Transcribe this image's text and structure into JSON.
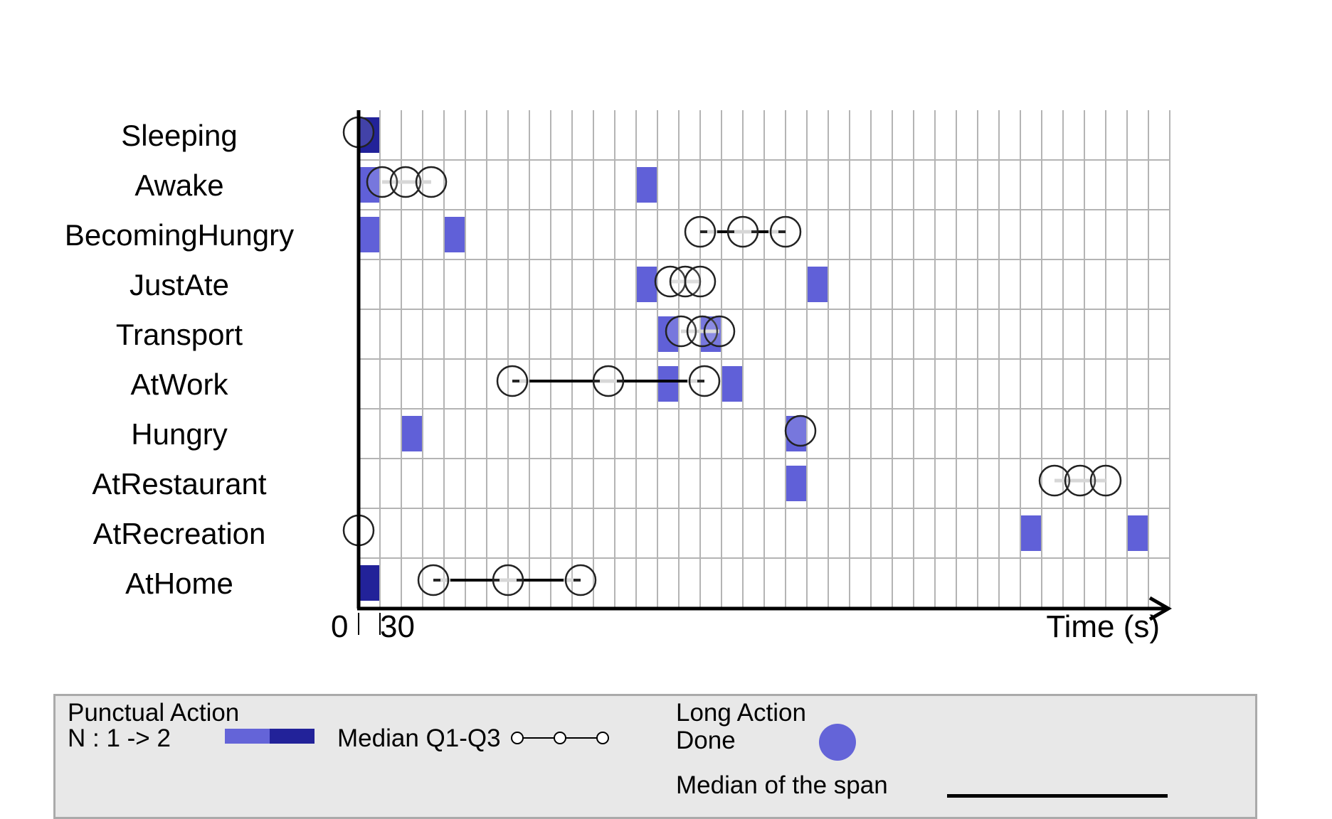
{
  "chart_data": {
    "type": "timeline",
    "x_unit_label": "Time (s)",
    "x_ticks": [
      "0",
      "30"
    ],
    "grid": true,
    "rows": [
      "Sleeping",
      "Awake",
      "BecomingHungry",
      "JustAte",
      "Transport",
      "AtWork",
      "Hungry",
      "AtRestaurant",
      "AtRecreation",
      "AtHome"
    ],
    "punctual_actions": [
      {
        "row": "Sleeping",
        "col": 0,
        "n": 2
      },
      {
        "row": "Awake",
        "col": 0,
        "n": 1
      },
      {
        "row": "Awake",
        "col": 13,
        "n": 1
      },
      {
        "row": "BecomingHungry",
        "col": 0,
        "n": 1
      },
      {
        "row": "BecomingHungry",
        "col": 4,
        "n": 1
      },
      {
        "row": "JustAte",
        "col": 13,
        "n": 1
      },
      {
        "row": "JustAte",
        "col": 21,
        "n": 1
      },
      {
        "row": "Transport",
        "col": 14,
        "n": 1
      },
      {
        "row": "Transport",
        "col": 16,
        "n": 1
      },
      {
        "row": "AtWork",
        "col": 14,
        "n": 1
      },
      {
        "row": "AtWork",
        "col": 17,
        "n": 1
      },
      {
        "row": "Hungry",
        "col": 2,
        "n": 1
      },
      {
        "row": "Hungry",
        "col": 20,
        "n": 1
      },
      {
        "row": "AtRestaurant",
        "col": 20,
        "n": 1
      },
      {
        "row": "AtRecreation",
        "col": 31,
        "n": 1
      },
      {
        "row": "AtRecreation",
        "col": 36,
        "n": 1
      },
      {
        "row": "AtHome",
        "col": 0,
        "n": 2
      }
    ],
    "long_actions": [
      {
        "row": "Sleeping",
        "q1": 0,
        "median": 0,
        "q3": 0,
        "median_span": false
      },
      {
        "row": "Awake",
        "q1": 1.1,
        "median": 2.2,
        "q3": 3.4,
        "median_span": false
      },
      {
        "row": "BecomingHungry",
        "q1": 16,
        "median": 18,
        "q3": 20,
        "median_span": true
      },
      {
        "row": "JustAte",
        "q1": 14.6,
        "median": 15.3,
        "q3": 16,
        "median_span": false
      },
      {
        "row": "Transport",
        "q1": 15.1,
        "median": 16.1,
        "q3": 16.9,
        "median_span": false
      },
      {
        "row": "AtWork",
        "q1": 7.2,
        "median": 11.7,
        "q3": 16.2,
        "median_span": true
      },
      {
        "row": "Hungry",
        "q1": 20.7,
        "median": 20.7,
        "q3": 20.7,
        "median_span": false
      },
      {
        "row": "AtRestaurant",
        "q1": 32.6,
        "median": 33.8,
        "q3": 35.0,
        "median_span": false
      },
      {
        "row": "AtRecreation",
        "q1": 0,
        "median": 0,
        "q3": 0,
        "median_span": false
      },
      {
        "row": "AtHome",
        "q1": 3.5,
        "median": 7,
        "q3": 10.4,
        "median_span": true
      }
    ],
    "colors": {
      "punctual_n1": "#6060d8",
      "punctual_n2": "#222299",
      "grid": "#b4b4b4",
      "median_line": "#000000",
      "span_line": "#d0d0d0"
    }
  },
  "legend": {
    "punctual_title": "Punctual Action",
    "punctual_scale": "N : 1 -> 2",
    "median_label": "Median Q1-Q3",
    "long_title": "Long Action",
    "done_label": "Done",
    "median_span_label": "Median of the span",
    "colors": {
      "light": "#6464d8",
      "dark": "#222299",
      "done": "#6464d8"
    }
  }
}
